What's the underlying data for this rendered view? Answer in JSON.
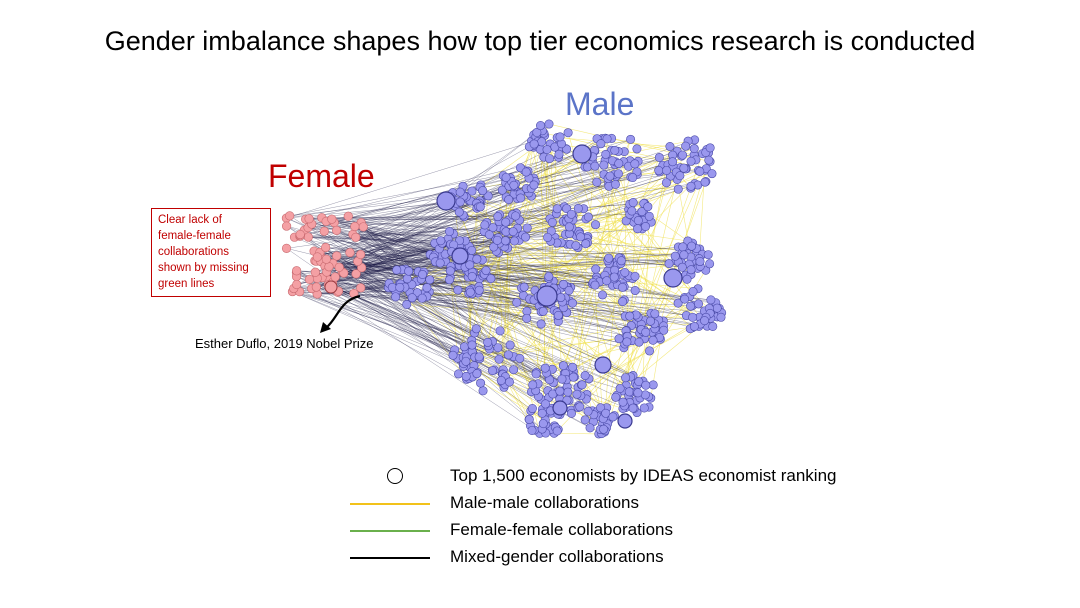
{
  "title": "Gender imbalance shapes how top tier economics research is conducted",
  "labels": {
    "male": "Male",
    "female": "Female"
  },
  "annotation": {
    "note": "Clear lack of\nfemale-female\ncollaborations\nshown by missing\ngreen lines",
    "callout": "Esther Duflo, 2019 Nobel Prize"
  },
  "legend": [
    {
      "symbol": "circle-icon",
      "text": "Top 1,500 economists by IDEAS economist ranking"
    },
    {
      "symbol": "line",
      "color": "#f2c21a",
      "text": "Male-male collaborations"
    },
    {
      "symbol": "line",
      "color": "#6ab04c",
      "text": "Female-female collaborations"
    },
    {
      "symbol": "line",
      "color": "#000000",
      "text": "Mixed-gender collaborations"
    }
  ],
  "colors": {
    "male_node": "#9a98ee",
    "male_node_stroke": "#4a4aa8",
    "female_node": "#f4a0a4",
    "female_node_stroke": "#c86a70",
    "male_male_edge": "#f0e04a",
    "mixed_edge": "#1c1a48",
    "male_label": "#5b74c8",
    "female_label": "#c00000"
  }
}
